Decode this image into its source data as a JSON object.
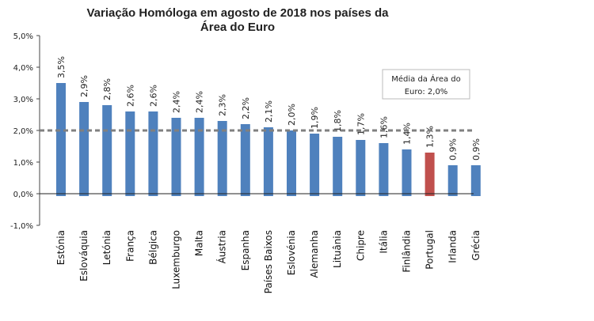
{
  "chart_data": {
    "type": "bar",
    "title_line1": "Variação Homóloga em agosto de 2018 nos países da",
    "title_line2": "Área do Euro",
    "categories": [
      "Estónia",
      "Eslováquia",
      "Letónia",
      "França",
      "Bélgica",
      "Luxemburgo",
      "Malta",
      "Áustria",
      "Espanha",
      "Países Baixos",
      "Eslovénia",
      "Alemanha",
      "Lituânia",
      "Chipre",
      "Itália",
      "Finlândia",
      "Portugal",
      "Irlanda",
      "Grécia"
    ],
    "values": [
      3.5,
      2.9,
      2.8,
      2.6,
      2.6,
      2.4,
      2.4,
      2.3,
      2.2,
      2.1,
      2.0,
      1.9,
      1.8,
      1.7,
      1.6,
      1.4,
      1.3,
      0.9,
      0.9
    ],
    "data_labels": [
      "3,5%",
      "2,9%",
      "2,8%",
      "2,6%",
      "2,6%",
      "2,4%",
      "2,4%",
      "2,3%",
      "2,2%",
      "2,1%",
      "2,0%",
      "1,9%",
      "1,8%",
      "1,7%",
      "1,6%",
      "1,4%",
      "1,3%",
      "0,9%",
      "0,9%"
    ],
    "highlight": "Portugal",
    "colors": {
      "bar": "#4f81bd",
      "highlight": "#c0504d",
      "reference": "#808080"
    },
    "ylim": [
      -1.0,
      5.0
    ],
    "yticks": [
      5.0,
      4.0,
      3.0,
      2.0,
      1.0,
      0.0,
      -1.0
    ],
    "ytick_labels": [
      "5,0%",
      "4,0%",
      "3,0%",
      "2,0%",
      "1,0%",
      "0,0%",
      "-1,0%"
    ],
    "reference_line": {
      "value": 2.0,
      "label_line1": "Média da Área  do",
      "label_line2": "Euro: 2,0%"
    },
    "xlabel": "",
    "ylabel": "",
    "grid": false
  }
}
